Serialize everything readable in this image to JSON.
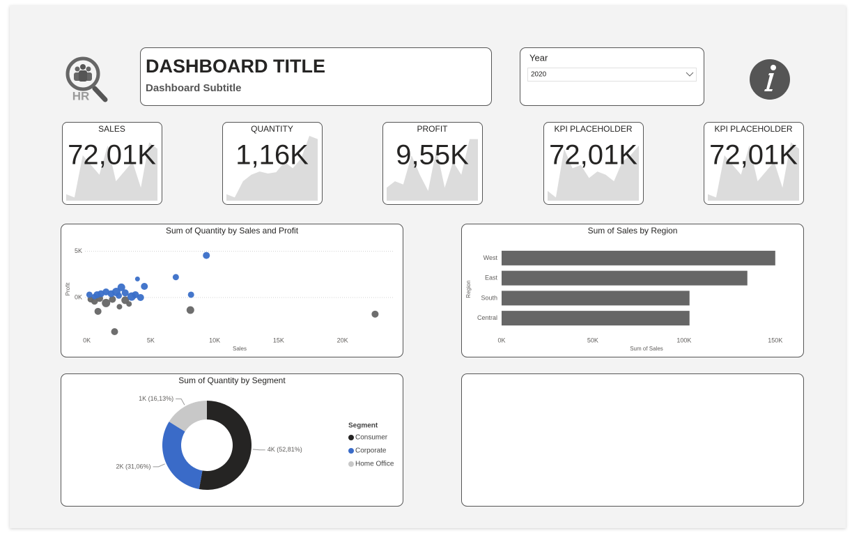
{
  "header": {
    "title": "DASHBOARD TITLE",
    "subtitle": "Dashboard Subtitle",
    "logo_text": "HR"
  },
  "filter": {
    "label": "Year",
    "value": "2020"
  },
  "kpis": [
    {
      "label": "SALES",
      "value": "72,01K",
      "sparkline": [
        10,
        5,
        70,
        55,
        40,
        85,
        30,
        45,
        60,
        20,
        90,
        80
      ]
    },
    {
      "label": "QUANTITY",
      "value": "1,16K",
      "sparkline": [
        10,
        5,
        30,
        40,
        45,
        42,
        44,
        60,
        50,
        65,
        100,
        95
      ]
    },
    {
      "label": "PROFIT",
      "value": "9,55K",
      "sparkline": [
        20,
        30,
        25,
        70,
        40,
        15,
        80,
        20,
        60,
        40,
        95,
        95
      ]
    },
    {
      "label": "KPI PLACEHOLDER",
      "value": "72,01K",
      "sparkline": [
        15,
        5,
        80,
        50,
        55,
        35,
        45,
        40,
        30,
        60,
        70,
        85
      ]
    },
    {
      "label": "KPI PLACEHOLDER",
      "value": "72,01K",
      "sparkline": [
        10,
        5,
        70,
        55,
        40,
        85,
        30,
        45,
        60,
        20,
        90,
        80
      ]
    }
  ],
  "kpi_ylim": [
    0,
    100
  ],
  "chart_data": [
    {
      "type": "scatter",
      "title": "Sum of Quantity by Sales and Profit",
      "x_label": "Sales",
      "y_label": "Profit",
      "xlim": [
        -800,
        24000
      ],
      "ylim": [
        -4000,
        5800
      ],
      "xticks": [
        {
          "value": 0,
          "label": "0K"
        },
        {
          "value": 5000,
          "label": "5K"
        },
        {
          "value": 10000,
          "label": "10K"
        },
        {
          "value": 15000,
          "label": "15K"
        },
        {
          "value": 20000,
          "label": "20K"
        }
      ],
      "yticks": [
        {
          "value": 0,
          "label": "0K"
        },
        {
          "value": 5000,
          "label": "5K"
        }
      ],
      "grid": true,
      "series": [
        {
          "color": "#666666",
          "x": [
            22550,
            8100,
            2170,
            870,
            2550,
            3000,
            1500,
            600,
            300,
            2000,
            1000,
            3300
          ],
          "values": [
            -1800,
            -1360,
            -3700,
            -1500,
            -1000,
            -300,
            -600,
            -400,
            -200,
            -200,
            -100,
            -700
          ],
          "sizes": [
            5,
            5.5,
            5,
            5,
            4,
            5.5,
            6,
            5,
            4.5,
            5,
            5,
            4
          ]
        },
        {
          "color": "#3a6fc8",
          "x": [
            9350,
            6960,
            8150,
            4500,
            3960,
            2700,
            2300,
            1500,
            800,
            200,
            3500,
            4200,
            3000,
            1900,
            1100,
            2500,
            600,
            3800
          ],
          "values": [
            4550,
            2200,
            300,
            1200,
            2000,
            1100,
            600,
            600,
            300,
            300,
            100,
            0,
            500,
            400,
            400,
            200,
            100,
            300
          ],
          "sizes": [
            5,
            4.5,
            4.5,
            5,
            3.5,
            5.5,
            6,
            5,
            5,
            4.5,
            6,
            5,
            5,
            5,
            5,
            4.5,
            4,
            5
          ]
        }
      ]
    },
    {
      "type": "bar",
      "orientation": "horizontal",
      "title": "Sum of Sales by Region",
      "x_label": "Sum of Sales",
      "y_label": "Region",
      "categories": [
        "West",
        "East",
        "South",
        "Central"
      ],
      "values": [
        150000,
        134700,
        103000,
        103000
      ],
      "color": "#666666",
      "xlim": [
        0,
        160000
      ],
      "xticks": [
        {
          "value": 0,
          "label": "0K"
        },
        {
          "value": 50000,
          "label": "50K"
        },
        {
          "value": 100000,
          "label": "100K"
        },
        {
          "value": 150000,
          "label": "150K"
        }
      ]
    },
    {
      "type": "donut",
      "title": "Sum of Quantity by Segment",
      "legend_title": "Segment",
      "categories": [
        "Consumer",
        "Corporate",
        "Home Office"
      ],
      "values": [
        52.81,
        31.06,
        16.13
      ],
      "value_labels": [
        "4K (52,81%)",
        "2K (31,06%)",
        "1K (16,13%)"
      ],
      "colors": [
        "#252423",
        "#3a6bc8",
        "#c8c8c8"
      ],
      "legend": "right"
    }
  ]
}
